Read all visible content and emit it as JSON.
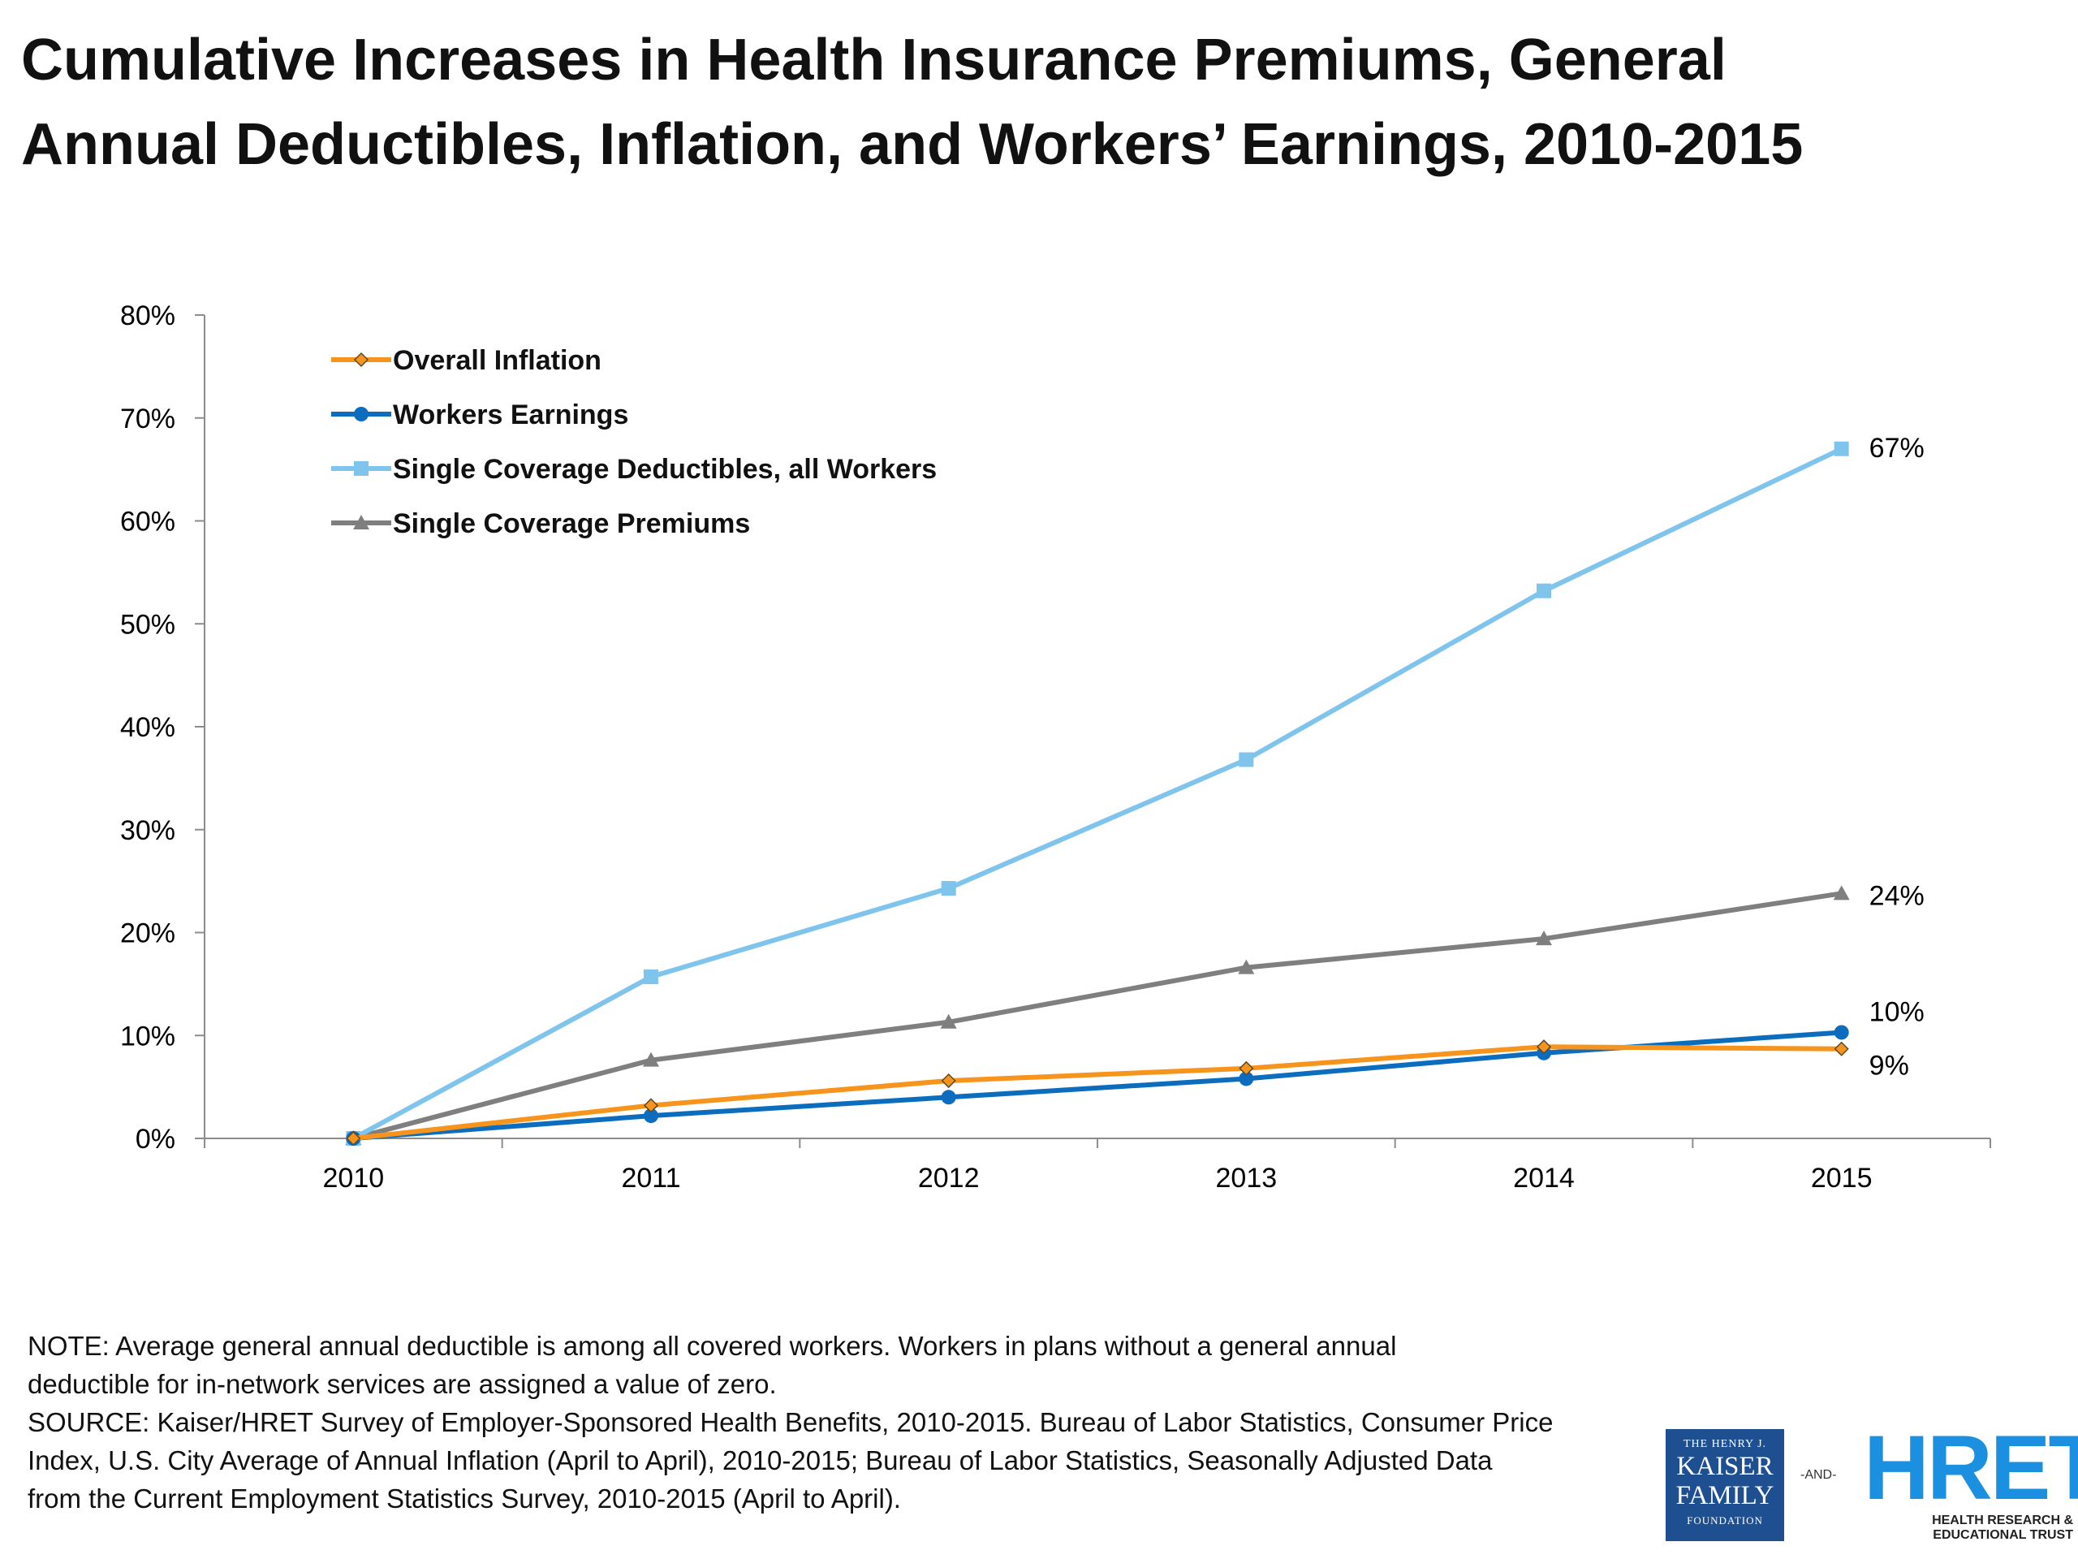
{
  "title": {
    "line1": "Cumulative Increases in Health Insurance Premiums, General",
    "line2": "Annual Deductibles, Inflation, and Workers’ Earnings, 2010-2015"
  },
  "chart_data": {
    "type": "line",
    "title": "Cumulative Increases in Health Insurance Premiums, General Annual Deductibles, Inflation, and Workers’ Earnings, 2010-2015",
    "x": [
      "2010",
      "2011",
      "2012",
      "2013",
      "2014",
      "2015"
    ],
    "ylim": [
      0,
      80
    ],
    "yticks": [
      "0%",
      "10%",
      "20%",
      "30%",
      "40%",
      "50%",
      "60%",
      "70%",
      "80%"
    ],
    "legend_position": "top-left",
    "grid": false,
    "series": [
      {
        "name": "Overall Inflation",
        "color": "#f7941d",
        "marker": "diamond",
        "values": [
          0,
          3.2,
          5.6,
          6.8,
          8.9,
          8.7
        ],
        "end_label": "9%"
      },
      {
        "name": "Workers Earnings",
        "color": "#0c6dbf",
        "marker": "circle",
        "values": [
          0,
          2.2,
          4.0,
          5.8,
          8.3,
          10.3
        ],
        "end_label": "10%"
      },
      {
        "name": "Single Coverage Deductibles, all Workers",
        "color": "#7fc4ec",
        "marker": "square",
        "values": [
          0,
          15.7,
          24.3,
          36.8,
          53.2,
          67.0
        ],
        "end_label": "67%"
      },
      {
        "name": "Single Coverage Premiums",
        "color": "#7f7f7f",
        "marker": "triangle",
        "values": [
          0,
          7.6,
          11.3,
          16.6,
          19.4,
          23.8
        ],
        "end_label": "24%"
      }
    ]
  },
  "notes": {
    "line1": "NOTE:  Average general annual deductible  is among  all covered workers. Workers in plans without a general annual",
    "line2": "deductible for in-network services are assigned a value of zero.",
    "line3": "SOURCE:  Kaiser/HRET Survey of Employer-Sponsored Health Benefits, 2010-2015.  Bureau of Labor Statistics, Consumer Price",
    "line4": "Index, U.S. City Average of Annual Inflation (April to April), 2010-2015; Bureau of Labor Statistics, Seasonally Adjusted Data",
    "line5": "from the Current Employment Statistics Survey, 2010-2015 (April to April)."
  },
  "logos": {
    "kff": {
      "top": "THE HENRY J.",
      "line1": "KAISER",
      "line2": "FAMILY",
      "bottom": "FOUNDATION"
    },
    "and": "-AND-",
    "hret": {
      "word": "HRET",
      "sub1": "HEALTH RESEARCH &",
      "sub2": "EDUCATIONAL TRUST"
    }
  }
}
